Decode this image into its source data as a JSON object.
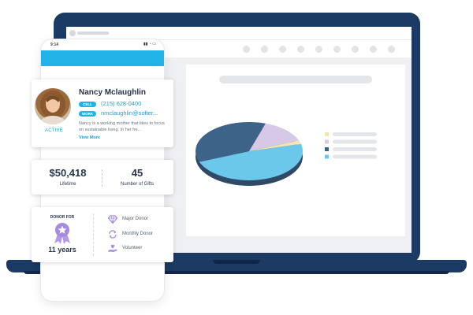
{
  "phone": {
    "time": "9:14",
    "status_icons": "▮▮ ◔ ▭"
  },
  "profile": {
    "name": "Nancy Mclaughlin",
    "status": "ACTIVE",
    "cell_tag": "CELL",
    "phone": "(215) 628-0400",
    "work_tag": "WORK",
    "email": "nmclaughlin@softer...",
    "bio": "Nancy is a working mother that likes to focus on sustainable living. In her fre...",
    "view_more": "View More"
  },
  "stats": {
    "lifetime_value": "$50,418",
    "lifetime_label": "Lifetime",
    "gifts_value": "45",
    "gifts_label": "Number of Gifts"
  },
  "donor": {
    "label": "DONOR FOR",
    "years": "11 years",
    "attributes": [
      {
        "label": "Major Donor",
        "icon": "diamond-icon"
      },
      {
        "label": "Monthly Donor",
        "icon": "recurring-icon"
      },
      {
        "label": "Volunteer",
        "icon": "hand-heart-icon"
      }
    ]
  },
  "colors": {
    "accent": "#21b3e8",
    "laptop": "#1b3a64",
    "purple": "#a88be0"
  },
  "chart_data": {
    "type": "pie",
    "series": [
      {
        "value": 48,
        "color": "#6cc8ea"
      },
      {
        "value": 36,
        "color": "#3e6388"
      },
      {
        "value": 14,
        "color": "#d7c8e6"
      },
      {
        "value": 2,
        "color": "#f3e6b0"
      }
    ],
    "legend_colors": [
      "#f3e6b0",
      "#d7c8e6",
      "#3e6388",
      "#6cc8ea"
    ],
    "legend_placement": "right"
  }
}
